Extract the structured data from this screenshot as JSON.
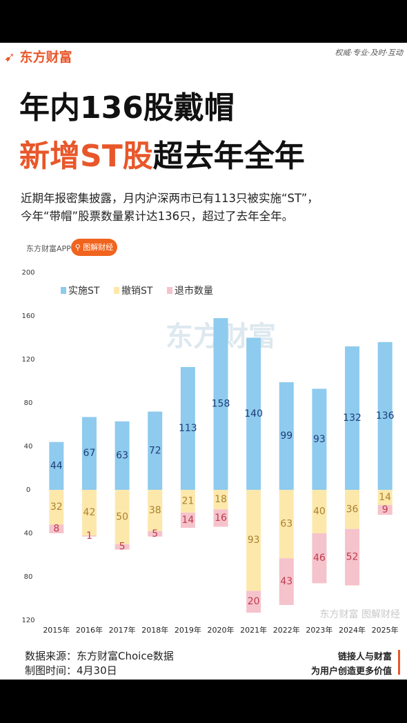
{
  "header": {
    "logo": "东方财富",
    "slogan": "权威·专业·及时·互动"
  },
  "headline": {
    "line1": "年内136股戴帽",
    "line2_highlight": "新增ST股",
    "line2_rest": "超去年全年",
    "description": [
      "近期年报密集披露，月内沪深两市已有113只被实施“ST”，",
      "今年“带帽”股票数量累计达136只，超过了去年全年。"
    ]
  },
  "tag": {
    "source": "东方财富APP",
    "button": "图解财经"
  },
  "watermark": {
    "main": "东方财富",
    "corner": "东方财富 图解财经"
  },
  "chart_data": {
    "type": "bar",
    "stacked": true,
    "categories": [
      "2015年",
      "2016年",
      "2017年",
      "2018年",
      "2019年",
      "2020年",
      "2021年",
      "2022年",
      "2023年",
      "2024年",
      "2025年"
    ],
    "series": [
      {
        "name": "实施ST",
        "color": "#8ecbee",
        "label_color": "#1f3d78",
        "values": [
          44,
          67,
          63,
          72,
          113,
          158,
          140,
          99,
          93,
          132,
          136
        ]
      },
      {
        "name": "撤销ST",
        "color": "#fde8ac",
        "label_color": "#a88230",
        "values": [
          -32,
          -42,
          -50,
          -38,
          -21,
          -18,
          -93,
          -63,
          -40,
          -36,
          -14
        ],
        "value_labels": [
          "32",
          "42",
          "50",
          "38",
          "21",
          "18",
          "93",
          "63",
          "40",
          "36",
          "14"
        ]
      },
      {
        "name": "退市数量",
        "color": "#f5c3cb",
        "label_color": "#c03a4d",
        "values": [
          -8,
          -1,
          -5,
          -5,
          -14,
          -16,
          -20,
          -43,
          -46,
          -52,
          -9
        ],
        "value_labels": [
          "8",
          "1",
          "5",
          "5",
          "14",
          "16",
          "20",
          "43",
          "46",
          "52",
          "9"
        ]
      }
    ],
    "ylim": [
      -120,
      200
    ],
    "yticks": [
      200,
      160,
      120,
      80,
      40,
      0,
      {
        "value": -40,
        "label": "40"
      },
      {
        "value": -80,
        "label": "80"
      },
      {
        "value": -120,
        "label": "120"
      }
    ],
    "grid": false,
    "legend": "top-left"
  },
  "footer": {
    "source": "数据来源：东方财富Choice数据",
    "date": "制图时间：4月30日",
    "motto1": "链接人与财富",
    "motto2": "为用户创造更多价值"
  }
}
